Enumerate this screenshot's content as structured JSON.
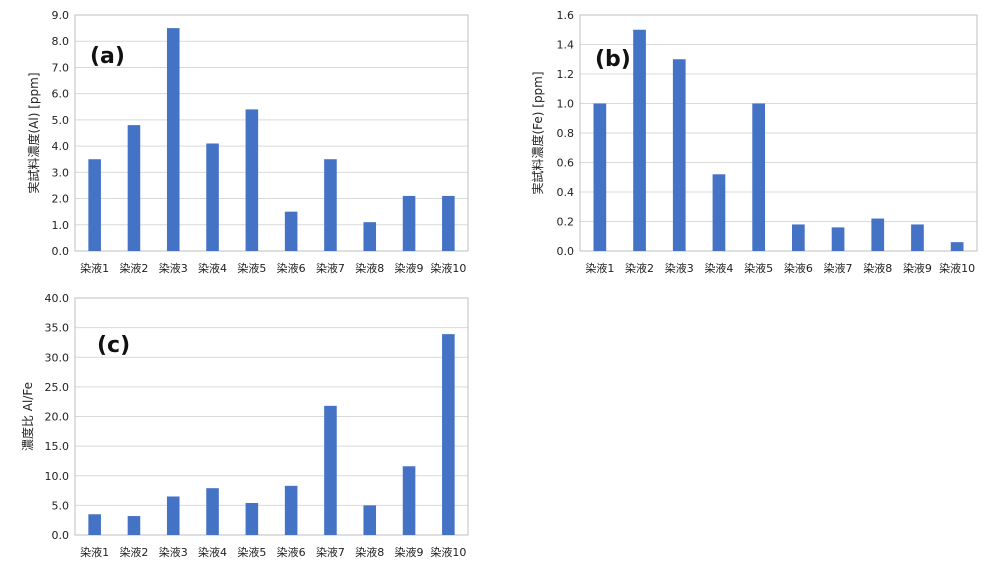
{
  "chart_data": [
    {
      "type": "bar",
      "panel_label": "(a)",
      "categories": [
        "染液1",
        "染液2",
        "染液3",
        "染液4",
        "染液5",
        "染液6",
        "染液7",
        "染液8",
        "染液9",
        "染液10"
      ],
      "values": [
        3.5,
        4.8,
        8.5,
        4.1,
        5.4,
        1.5,
        3.5,
        1.1,
        2.1,
        2.1
      ],
      "ylabel": "実試料濃度(Al) [ppm]",
      "ylim": [
        0,
        9
      ],
      "yticks": [
        "0.0",
        "1.0",
        "2.0",
        "3.0",
        "4.0",
        "5.0",
        "6.0",
        "7.0",
        "8.0",
        "9.0"
      ],
      "bar_color": "#4472C4",
      "grid": true
    },
    {
      "type": "bar",
      "panel_label": "(b)",
      "categories": [
        "染液1",
        "染液2",
        "染液3",
        "染液4",
        "染液5",
        "染液6",
        "染液7",
        "染液8",
        "染液9",
        "染液10"
      ],
      "values": [
        1.0,
        1.5,
        1.3,
        0.52,
        1.0,
        0.18,
        0.16,
        0.22,
        0.18,
        0.06
      ],
      "ylabel": "実試料濃度(Fe) [ppm]",
      "ylim": [
        0,
        1.6
      ],
      "yticks": [
        "0.0",
        "0.2",
        "0.4",
        "0.6",
        "0.8",
        "1.0",
        "1.2",
        "1.4",
        "1.6"
      ],
      "bar_color": "#4472C4",
      "grid": true
    },
    {
      "type": "bar",
      "panel_label": "(c)",
      "categories": [
        "染液1",
        "染液2",
        "染液3",
        "染液4",
        "染液5",
        "染液6",
        "染液7",
        "染液8",
        "染液9",
        "染液10"
      ],
      "values": [
        3.5,
        3.2,
        6.5,
        7.9,
        5.4,
        8.3,
        21.8,
        5.0,
        11.6,
        33.9
      ],
      "ylabel": "濃度比 Al/Fe",
      "ylim": [
        0,
        40
      ],
      "yticks": [
        "0.0",
        "5.0",
        "10.0",
        "15.0",
        "20.0",
        "25.0",
        "30.0",
        "35.0",
        "40.0"
      ],
      "bar_color": "#4472C4",
      "grid": true
    }
  ]
}
